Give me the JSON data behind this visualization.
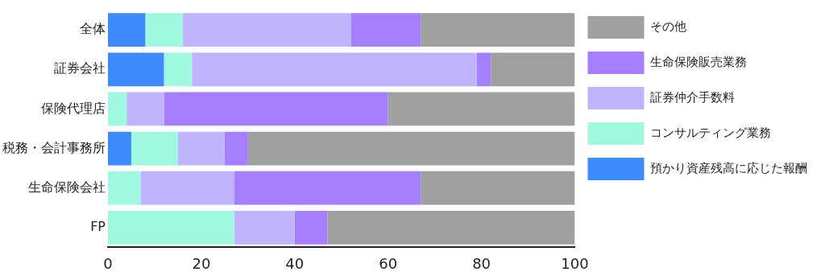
{
  "chart_data": {
    "type": "bar",
    "orientation": "horizontal",
    "stacked": true,
    "legend": "right",
    "grid": false,
    "categories": [
      "全体",
      "証券会社",
      "保険代理店",
      "税務・会計事務所",
      "生命保険会社",
      "FP"
    ],
    "series": [
      {
        "name": "預かり資産残高に応じた報酬",
        "color": "#3d8bfd",
        "values": [
          8,
          12,
          0,
          5,
          0,
          0
        ]
      },
      {
        "name": "コンサルティング業務",
        "color": "#a0f8e0",
        "values": [
          8,
          6,
          4,
          10,
          7,
          27
        ]
      },
      {
        "name": "証券仲介手数料",
        "color": "#c0b4ff",
        "values": [
          36,
          61,
          8,
          10,
          20,
          13
        ]
      },
      {
        "name": "生命保険販売業務",
        "color": "#a57fff",
        "values": [
          15,
          3,
          48,
          5,
          40,
          7
        ]
      },
      {
        "name": "その他",
        "color": "#a0a0a0",
        "values": [
          33,
          18,
          40,
          70,
          33,
          53
        ]
      }
    ],
    "xlim": [
      0,
      100
    ],
    "xticks": [
      0,
      20,
      40,
      60,
      80,
      100
    ]
  }
}
